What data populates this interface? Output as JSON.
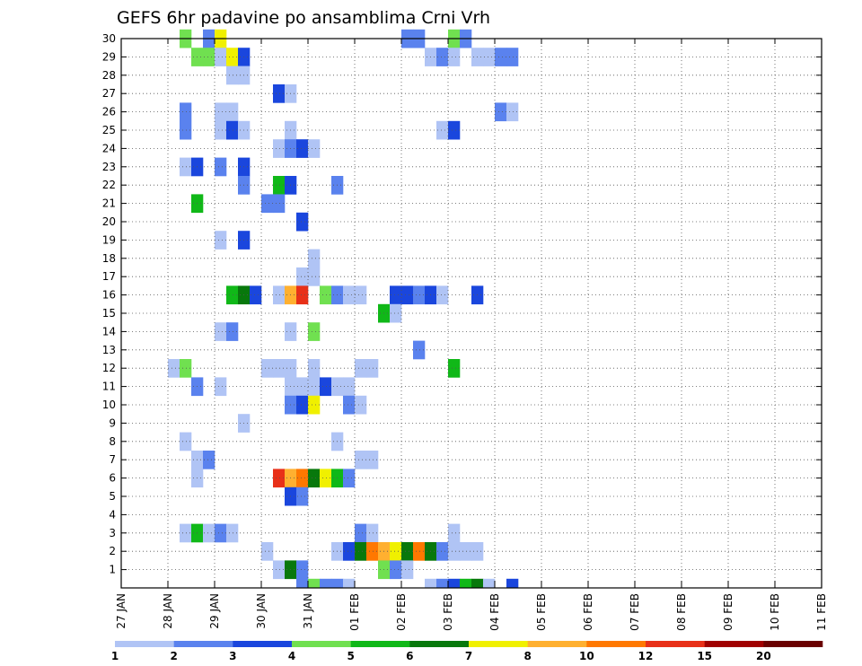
{
  "chart_data": {
    "type": "heatmap",
    "title": "GEFS 6hr padavine po ansamblima Crni Vrh",
    "x_tick_labels": [
      "27 JAN",
      "28 JAN",
      "29 JAN",
      "30 JAN",
      "31 JAN",
      "01 FEB",
      "02 FEB",
      "03 FEB",
      "04 FEB",
      "05 FEB",
      "06 FEB",
      "07 FEB",
      "08 FEB",
      "09 FEB",
      "10 FEB",
      "11 FEB"
    ],
    "y_tick_labels": [
      "1",
      "2",
      "3",
      "4",
      "5",
      "6",
      "7",
      "8",
      "9",
      "10",
      "11",
      "12",
      "13",
      "14",
      "15",
      "16",
      "17",
      "18",
      "19",
      "20",
      "21",
      "22",
      "23",
      "24",
      "25",
      "26",
      "27",
      "28",
      "29",
      "30"
    ],
    "xlim_days": [
      0,
      15
    ],
    "ylim": [
      0,
      30
    ],
    "grid": true,
    "time_step_hours": 6,
    "colorbar": {
      "levels": [
        "1",
        "2",
        "3",
        "4",
        "5",
        "6",
        "7",
        "8",
        "10",
        "12",
        "15",
        "20"
      ],
      "colors": [
        "#b0c4f5",
        "#5a82ee",
        "#1a46dd",
        "#70e050",
        "#10b818",
        "#08780c",
        "#f0f000",
        "#ffb030",
        "#ff7800",
        "#e83018",
        "#a00000",
        "#6a0000"
      ]
    },
    "cells_desc": "each cell = [member, 6h-step index from 27 JAN 00Z, color class 1..12]",
    "cells": [
      [
        30,
        5,
        4
      ],
      [
        30,
        7,
        2
      ],
      [
        30,
        8,
        7
      ],
      [
        30,
        24,
        2
      ],
      [
        30,
        25,
        2
      ],
      [
        30,
        28,
        4
      ],
      [
        30,
        29,
        2
      ],
      [
        29,
        6,
        4
      ],
      [
        29,
        7,
        4
      ],
      [
        29,
        8,
        1
      ],
      [
        29,
        9,
        7
      ],
      [
        29,
        10,
        3
      ],
      [
        29,
        26,
        1
      ],
      [
        29,
        27,
        2
      ],
      [
        29,
        28,
        1
      ],
      [
        29,
        30,
        1
      ],
      [
        29,
        31,
        1
      ],
      [
        29,
        32,
        2
      ],
      [
        29,
        33,
        2
      ],
      [
        28,
        9,
        1
      ],
      [
        28,
        10,
        1
      ],
      [
        27,
        13,
        3
      ],
      [
        27,
        14,
        1
      ],
      [
        26,
        5,
        2
      ],
      [
        26,
        8,
        1
      ],
      [
        26,
        9,
        1
      ],
      [
        26,
        32,
        2
      ],
      [
        26,
        33,
        1
      ],
      [
        25,
        5,
        2
      ],
      [
        25,
        8,
        1
      ],
      [
        25,
        9,
        3
      ],
      [
        25,
        10,
        1
      ],
      [
        25,
        14,
        1
      ],
      [
        25,
        27,
        1
      ],
      [
        25,
        28,
        3
      ],
      [
        24,
        13,
        1
      ],
      [
        24,
        14,
        2
      ],
      [
        24,
        15,
        3
      ],
      [
        24,
        16,
        1
      ],
      [
        23,
        5,
        1
      ],
      [
        23,
        6,
        3
      ],
      [
        23,
        8,
        2
      ],
      [
        23,
        10,
        3
      ],
      [
        22,
        10,
        2
      ],
      [
        22,
        13,
        5
      ],
      [
        22,
        14,
        3
      ],
      [
        22,
        18,
        2
      ],
      [
        21,
        6,
        5
      ],
      [
        21,
        13,
        2
      ],
      [
        21,
        12,
        2
      ],
      [
        20,
        15,
        3
      ],
      [
        19,
        8,
        1
      ],
      [
        19,
        10,
        3
      ],
      [
        18,
        16,
        1
      ],
      [
        17,
        15,
        1
      ],
      [
        17,
        16,
        1
      ],
      [
        16,
        9,
        5
      ],
      [
        16,
        10,
        6
      ],
      [
        16,
        11,
        3
      ],
      [
        16,
        13,
        1
      ],
      [
        16,
        14,
        8
      ],
      [
        16,
        15,
        10
      ],
      [
        16,
        17,
        4
      ],
      [
        16,
        18,
        2
      ],
      [
        16,
        19,
        1
      ],
      [
        16,
        20,
        1
      ],
      [
        16,
        23,
        3
      ],
      [
        16,
        24,
        3
      ],
      [
        16,
        25,
        2
      ],
      [
        16,
        26,
        3
      ],
      [
        16,
        27,
        1
      ],
      [
        16,
        30,
        3
      ],
      [
        15,
        22,
        5
      ],
      [
        15,
        23,
        1
      ],
      [
        14,
        8,
        1
      ],
      [
        14,
        9,
        2
      ],
      [
        14,
        14,
        1
      ],
      [
        14,
        16,
        4
      ],
      [
        13,
        25,
        2
      ],
      [
        12,
        4,
        1
      ],
      [
        12,
        5,
        4
      ],
      [
        12,
        12,
        1
      ],
      [
        12,
        13,
        1
      ],
      [
        12,
        14,
        1
      ],
      [
        12,
        16,
        1
      ],
      [
        12,
        20,
        1
      ],
      [
        12,
        21,
        1
      ],
      [
        12,
        28,
        5
      ],
      [
        11,
        6,
        2
      ],
      [
        11,
        8,
        1
      ],
      [
        11,
        14,
        1
      ],
      [
        11,
        15,
        1
      ],
      [
        11,
        16,
        1
      ],
      [
        11,
        17,
        3
      ],
      [
        11,
        18,
        1
      ],
      [
        11,
        19,
        1
      ],
      [
        10,
        14,
        2
      ],
      [
        10,
        15,
        3
      ],
      [
        10,
        16,
        7
      ],
      [
        10,
        19,
        2
      ],
      [
        10,
        20,
        1
      ],
      [
        9,
        10,
        1
      ],
      [
        8,
        5,
        1
      ],
      [
        8,
        18,
        1
      ],
      [
        7,
        6,
        1
      ],
      [
        7,
        7,
        2
      ],
      [
        7,
        20,
        1
      ],
      [
        7,
        21,
        1
      ],
      [
        6,
        6,
        1
      ],
      [
        6,
        13,
        10
      ],
      [
        6,
        14,
        8
      ],
      [
        6,
        15,
        9
      ],
      [
        6,
        16,
        6
      ],
      [
        6,
        17,
        7
      ],
      [
        6,
        18,
        5
      ],
      [
        6,
        19,
        2
      ],
      [
        5,
        14,
        3
      ],
      [
        5,
        15,
        2
      ],
      [
        3,
        5,
        1
      ],
      [
        3,
        6,
        5
      ],
      [
        3,
        7,
        1
      ],
      [
        3,
        8,
        2
      ],
      [
        3,
        9,
        1
      ],
      [
        3,
        20,
        2
      ],
      [
        3,
        21,
        1
      ],
      [
        3,
        28,
        1
      ],
      [
        2,
        12,
        1
      ],
      [
        2,
        18,
        1
      ],
      [
        2,
        19,
        3
      ],
      [
        2,
        20,
        6
      ],
      [
        2,
        21,
        9
      ],
      [
        2,
        22,
        8
      ],
      [
        2,
        23,
        7
      ],
      [
        2,
        24,
        6
      ],
      [
        2,
        25,
        9
      ],
      [
        2,
        26,
        6
      ],
      [
        2,
        27,
        2
      ],
      [
        2,
        28,
        1
      ],
      [
        2,
        29,
        1
      ],
      [
        2,
        30,
        1
      ],
      [
        1,
        13,
        1
      ],
      [
        1,
        14,
        6
      ],
      [
        1,
        15,
        2
      ],
      [
        1,
        22,
        4
      ],
      [
        1,
        23,
        2
      ],
      [
        1,
        24,
        1
      ],
      [
        0,
        15,
        2
      ],
      [
        0,
        16,
        4
      ],
      [
        0,
        17,
        2
      ],
      [
        0,
        18,
        2
      ],
      [
        0,
        19,
        1
      ],
      [
        0,
        26,
        1
      ],
      [
        0,
        27,
        2
      ],
      [
        0,
        28,
        3
      ],
      [
        0,
        29,
        5
      ],
      [
        0,
        30,
        6
      ],
      [
        0,
        31,
        1
      ],
      [
        0,
        33,
        3
      ]
    ]
  }
}
